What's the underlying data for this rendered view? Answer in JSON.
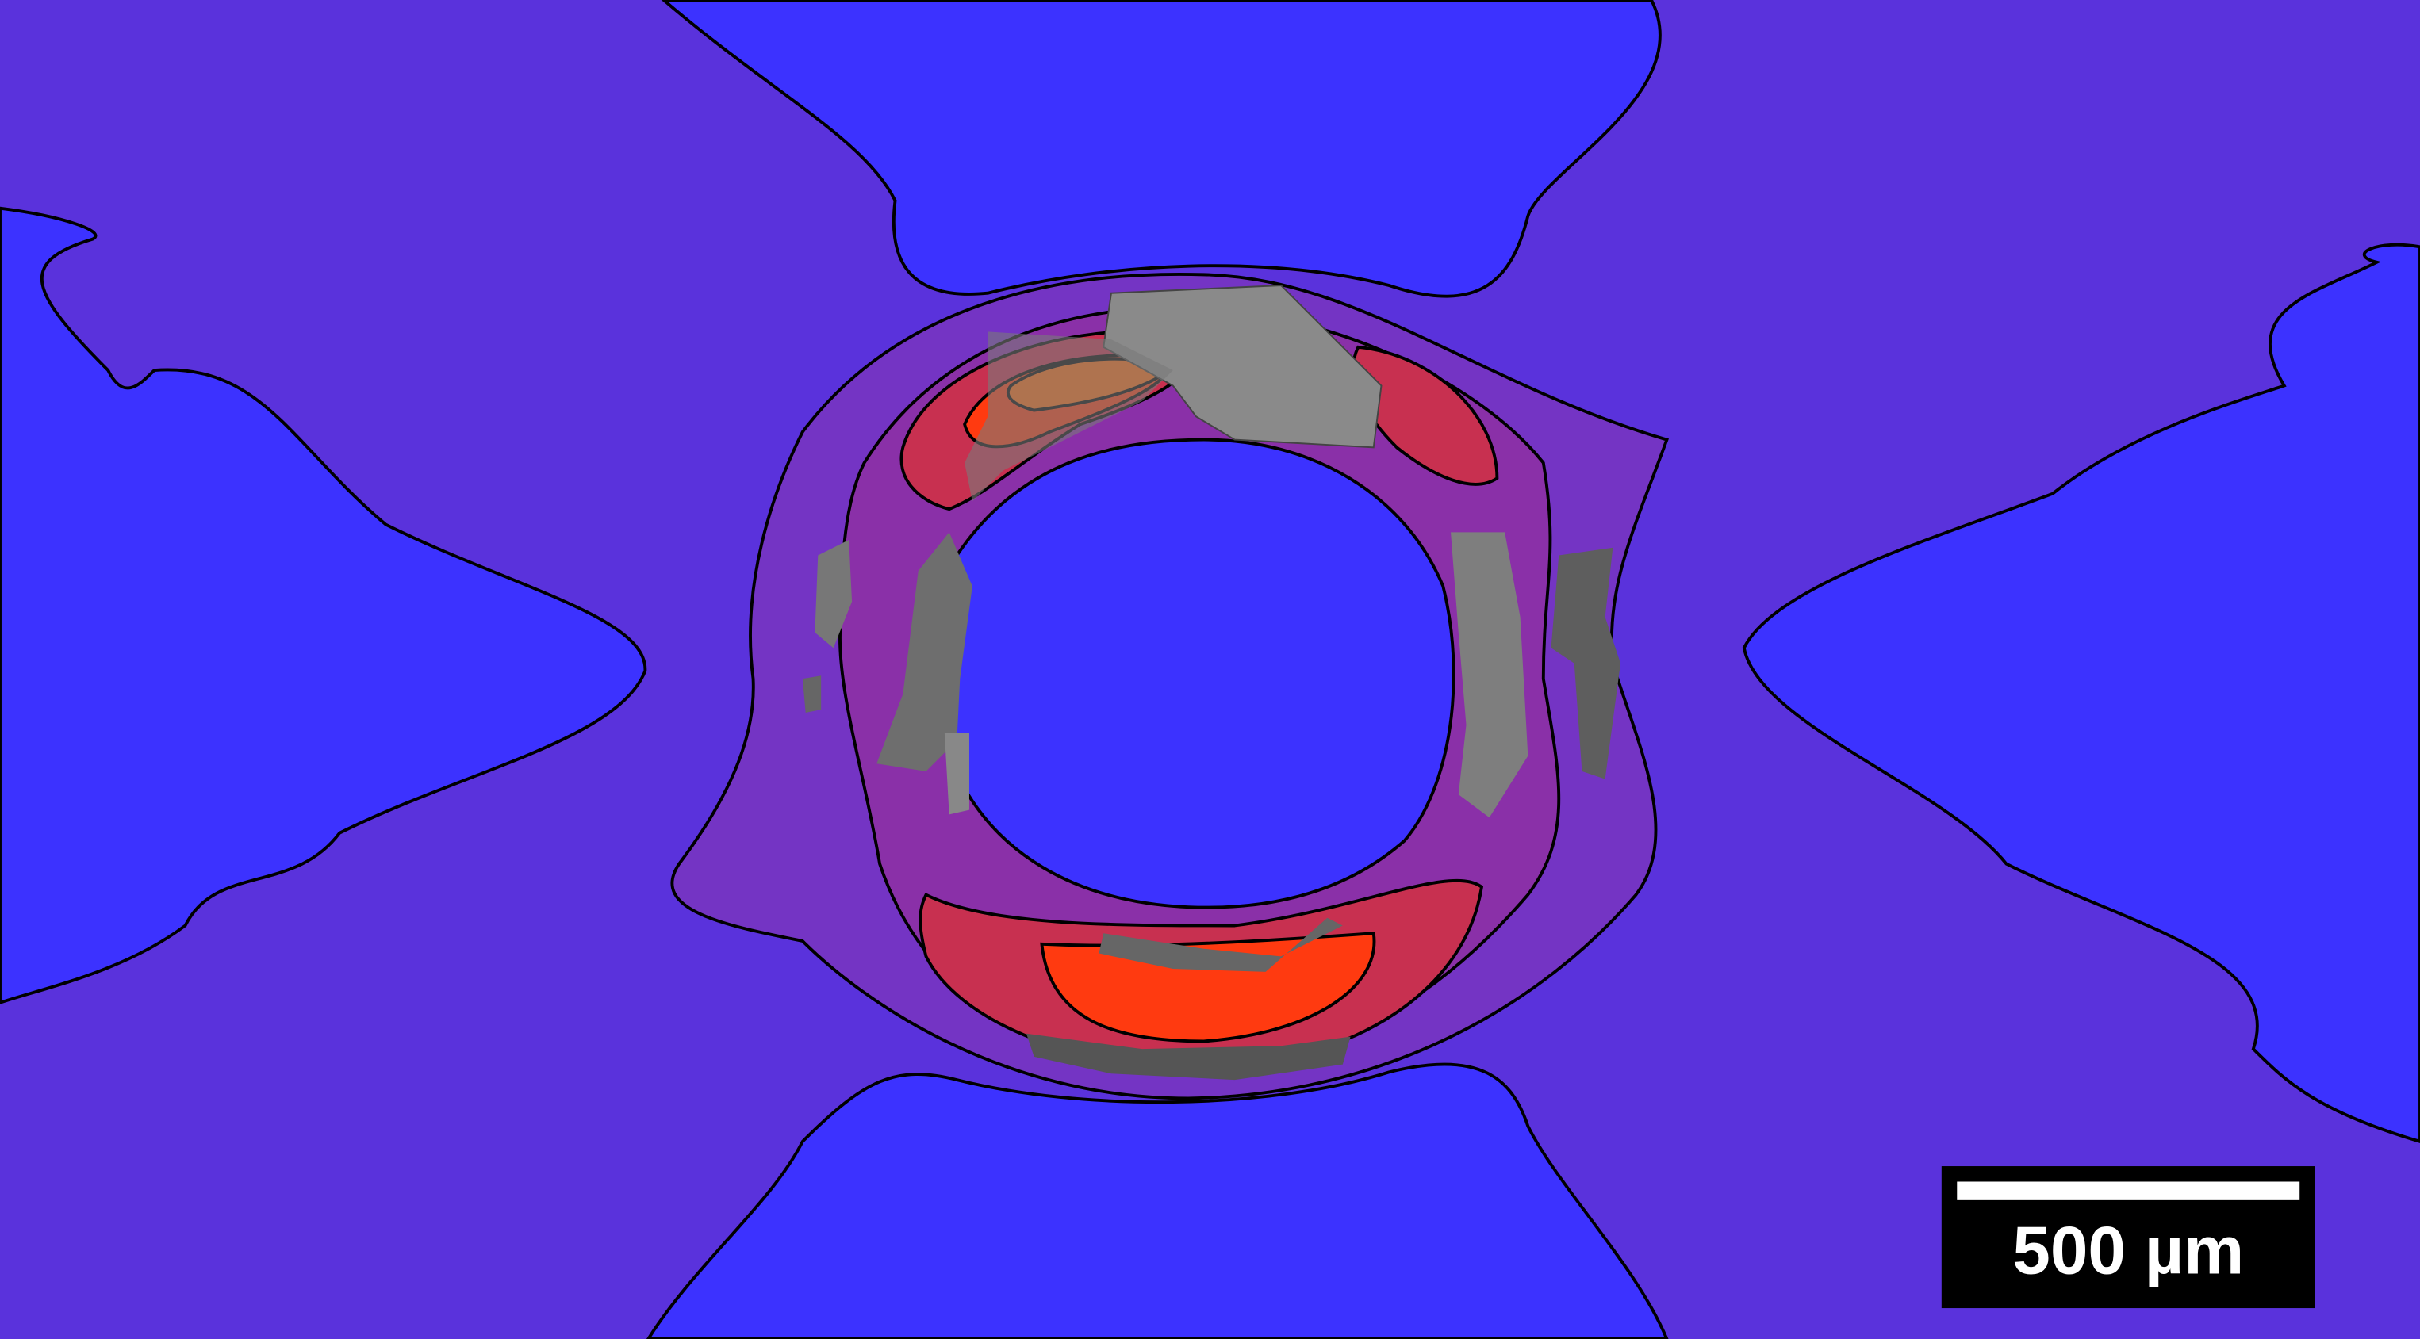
{
  "scale_bar": {
    "label": "500 µm"
  }
}
